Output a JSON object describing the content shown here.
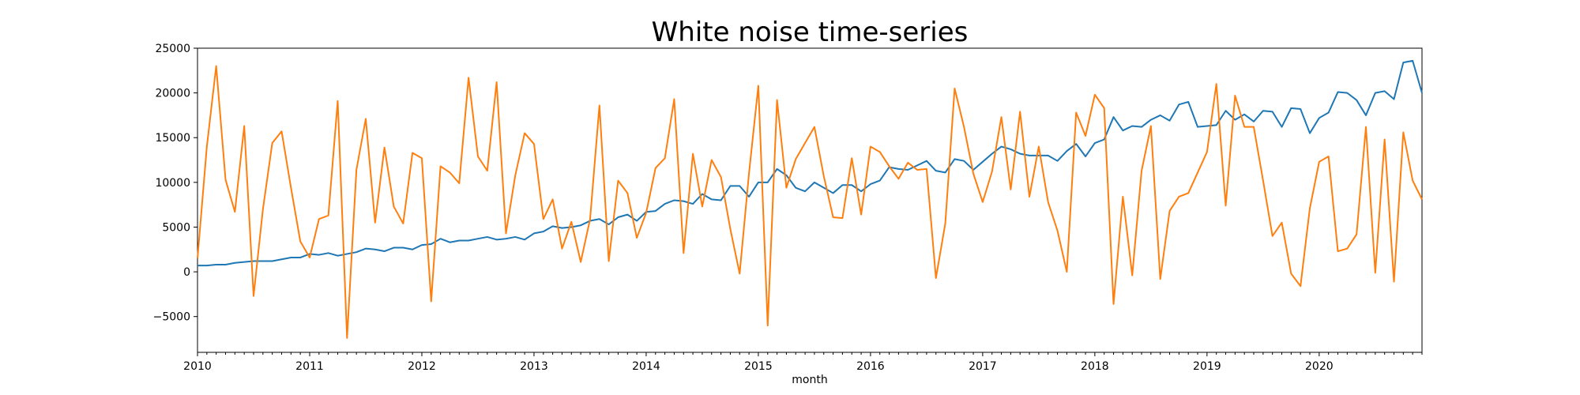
{
  "chart_data": {
    "type": "line",
    "title": "White noise time-series",
    "xlabel": "month",
    "ylabel": "",
    "x_start": "2010-01",
    "x_end": "2020-12",
    "xlim": [
      "2010-01",
      "2020-12"
    ],
    "ylim": [
      -9000,
      25000
    ],
    "yticks": [
      -5000,
      0,
      5000,
      10000,
      15000,
      20000,
      25000
    ],
    "ytick_labels": [
      "−5000",
      "0",
      "5000",
      "10000",
      "15000",
      "20000",
      "25000"
    ],
    "xtick_labels": [
      "2010",
      "2011",
      "2012",
      "2013",
      "2014",
      "2015",
      "2016",
      "2017",
      "2018",
      "2019",
      "2020"
    ],
    "grid": false,
    "legend": "none",
    "series": [
      {
        "color": "#1f77b4",
        "values": [
          700,
          700,
          800,
          800,
          1000,
          1100,
          1200,
          1200,
          1200,
          1400,
          1600,
          1600,
          2000,
          1900,
          2100,
          1800,
          2000,
          2200,
          2600,
          2500,
          2300,
          2700,
          2700,
          2500,
          3000,
          3100,
          3700,
          3300,
          3500,
          3500,
          3700,
          3900,
          3600,
          3700,
          3900,
          3600,
          4300,
          4500,
          5100,
          4900,
          5000,
          5200,
          5700,
          5900,
          5300,
          6100,
          6400,
          5700,
          6700,
          6800,
          7600,
          8000,
          7900,
          7600,
          8700,
          8100,
          8000,
          9600,
          9600,
          8400,
          10000,
          10000,
          11500,
          10800,
          9400,
          9000,
          10000,
          9400,
          8800,
          9700,
          9700,
          9000,
          9800,
          10200,
          11700,
          11500,
          11400,
          11900,
          12400,
          11300,
          11100,
          12600,
          12400,
          11400,
          12300,
          13200,
          14000,
          13700,
          13200,
          13000,
          13000,
          13000,
          12400,
          13500,
          14300,
          12900,
          14400,
          14800,
          17300,
          15800,
          16300,
          16200,
          17000,
          17500,
          16900,
          18700,
          19000,
          16200,
          16300,
          16400,
          18000,
          17000,
          17600,
          16800,
          18000,
          17900,
          16200,
          18300,
          18200,
          15500,
          17200,
          17800,
          20100,
          20000,
          19200,
          17500,
          20000,
          20200,
          19300,
          23400,
          23600,
          20000
        ]
      },
      {
        "color": "#ff7f0e",
        "values": [
          1500,
          14000,
          23000,
          10300,
          6700,
          16300,
          -2700,
          7000,
          14400,
          15700,
          9400,
          3400,
          1600,
          5900,
          6300,
          19100,
          -7400,
          11400,
          17100,
          5500,
          13900,
          7300,
          5400,
          13300,
          12700,
          -3300,
          11800,
          11100,
          9900,
          21700,
          12900,
          11300,
          21200,
          4300,
          10800,
          15500,
          14300,
          5900,
          8100,
          2600,
          5600,
          1100,
          5900,
          18600,
          1200,
          10200,
          8800,
          3800,
          6600,
          11600,
          12700,
          19300,
          2100,
          13200,
          7300,
          12500,
          10600,
          4800,
          -200,
          11000,
          20800,
          -6000,
          19200,
          9400,
          12600,
          14400,
          16200,
          10700,
          6100,
          6000,
          12700,
          6400,
          14000,
          13400,
          11800,
          10400,
          12200,
          11400,
          11500,
          -700,
          5400,
          20500,
          16200,
          11000,
          7800,
          11200,
          17300,
          9200,
          17900,
          8400,
          14000,
          7800,
          4600,
          0,
          17800,
          15200,
          19800,
          18300,
          -3600,
          8400,
          -400,
          11300,
          16300,
          -800,
          6800,
          8400,
          8800,
          11100,
          13400,
          21000,
          7400,
          19700,
          16200,
          16200,
          10200,
          4000,
          5500,
          -200,
          -1600,
          7100,
          12300,
          12900,
          2300,
          2600,
          4200,
          16200,
          -100,
          14800,
          -1100,
          15600,
          10200,
          8100
        ]
      }
    ]
  }
}
